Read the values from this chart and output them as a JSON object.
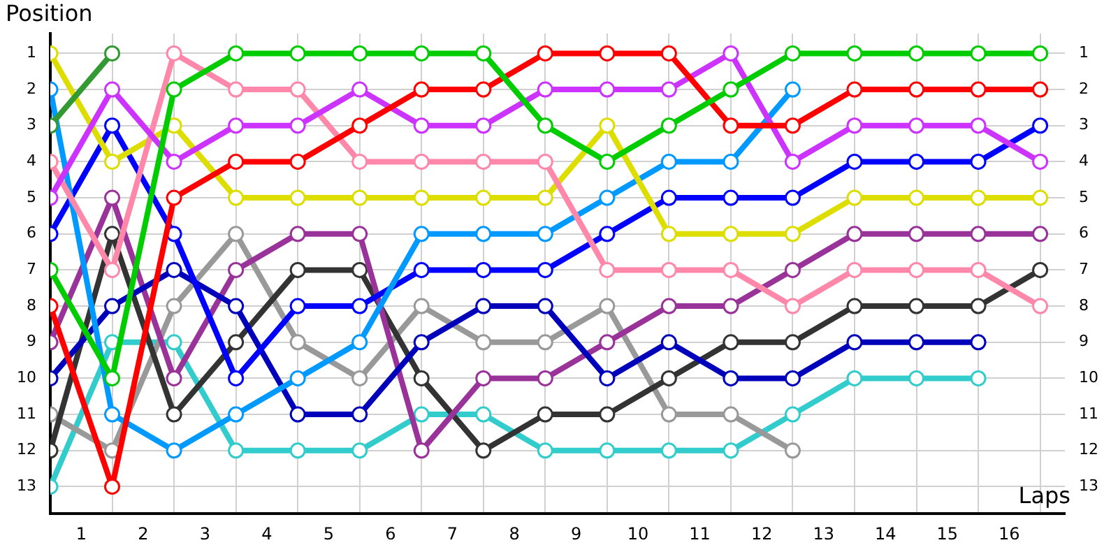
{
  "chart_data": {
    "type": "line",
    "xlabel": "Laps",
    "ylabel": "Position",
    "x": [
      0,
      1,
      2,
      3,
      4,
      5,
      6,
      7,
      8,
      9,
      10,
      11,
      12,
      13,
      14,
      15,
      16
    ],
    "xlim": [
      0,
      16.4
    ],
    "xticks": [
      {
        "value": 0,
        "label": null
      },
      {
        "value": 0.5,
        "label": "1"
      },
      {
        "value": 1,
        "label": null
      },
      {
        "value": 1.5,
        "label": "2"
      },
      {
        "value": 2,
        "label": null
      },
      {
        "value": 2.5,
        "label": "3"
      },
      {
        "value": 3,
        "label": null
      },
      {
        "value": 3.5,
        "label": "4"
      },
      {
        "value": 4,
        "label": null
      },
      {
        "value": 4.5,
        "label": "5"
      },
      {
        "value": 5,
        "label": null
      },
      {
        "value": 5.5,
        "label": "6"
      },
      {
        "value": 6,
        "label": null
      },
      {
        "value": 6.5,
        "label": "7"
      },
      {
        "value": 7,
        "label": null
      },
      {
        "value": 7.5,
        "label": "8"
      },
      {
        "value": 8,
        "label": null
      },
      {
        "value": 8.5,
        "label": "9"
      },
      {
        "value": 9,
        "label": null
      },
      {
        "value": 9.5,
        "label": "10"
      },
      {
        "value": 10,
        "label": null
      },
      {
        "value": 10.5,
        "label": "11"
      },
      {
        "value": 11,
        "label": null
      },
      {
        "value": 11.5,
        "label": "12"
      },
      {
        "value": 12,
        "label": null
      },
      {
        "value": 12.5,
        "label": "13"
      },
      {
        "value": 13,
        "label": null
      },
      {
        "value": 13.5,
        "label": "14"
      },
      {
        "value": 14,
        "label": null
      },
      {
        "value": 14.5,
        "label": "15"
      },
      {
        "value": 15,
        "label": null
      },
      {
        "value": 15.5,
        "label": "16"
      },
      {
        "value": 16,
        "label": null
      }
    ],
    "ylim": [
      13.75,
      0.45
    ],
    "yticks": [
      1,
      2,
      3,
      4,
      5,
      6,
      7,
      8,
      9,
      10,
      11,
      12,
      13
    ],
    "y2lim": [
      13.75,
      0.45
    ],
    "y2ticks": [
      1,
      2,
      3,
      4,
      5,
      6,
      7,
      8,
      9,
      10,
      11,
      12,
      13
    ],
    "grid": true,
    "legend": false,
    "marker": "circle",
    "line_style": "solid",
    "series": [
      {
        "color": "#339933",
        "values": [
          3,
          1,
          null,
          null,
          null,
          null,
          null,
          null,
          null,
          null,
          null,
          null,
          null,
          null,
          null,
          null,
          null
        ]
      },
      {
        "color": "#00cc00",
        "values": [
          7,
          10,
          2,
          1,
          1,
          1,
          1,
          1,
          3,
          4,
          3,
          2,
          1,
          1,
          1,
          1,
          1
        ]
      },
      {
        "color": "#ff0000",
        "values": [
          8,
          13,
          5,
          4,
          4,
          3,
          2,
          2,
          1,
          1,
          1,
          3,
          3,
          2,
          2,
          2,
          2
        ]
      },
      {
        "color": "#cc33ff",
        "values": [
          5,
          2,
          4,
          3,
          3,
          2,
          3,
          3,
          2,
          2,
          2,
          1,
          4,
          3,
          3,
          3,
          4
        ]
      },
      {
        "color": "#ff88aa",
        "values": [
          4,
          7,
          1,
          2,
          2,
          4,
          4,
          4,
          4,
          7,
          7,
          7,
          8,
          7,
          7,
          7,
          8
        ]
      },
      {
        "color": "#dddd00",
        "values": [
          1,
          4,
          3,
          5,
          5,
          5,
          5,
          5,
          5,
          3,
          6,
          6,
          6,
          5,
          5,
          5,
          5
        ]
      },
      {
        "color": "#0099ff",
        "values": [
          2,
          11,
          12,
          11,
          10,
          9,
          6,
          6,
          6,
          5,
          4,
          4,
          2,
          null,
          null,
          null,
          null
        ]
      },
      {
        "color": "#0000ff",
        "values": [
          6,
          3,
          6,
          10,
          8,
          8,
          7,
          7,
          7,
          6,
          5,
          5,
          5,
          4,
          4,
          4,
          3
        ]
      },
      {
        "color": "#0000bb",
        "values": [
          10,
          8,
          7,
          8,
          11,
          11,
          9,
          8,
          8,
          10,
          9,
          10,
          10,
          9,
          9,
          9,
          null
        ]
      },
      {
        "color": "#993399",
        "values": [
          9,
          5,
          10,
          7,
          6,
          6,
          12,
          10,
          10,
          9,
          8,
          8,
          7,
          6,
          6,
          6,
          6
        ]
      },
      {
        "color": "#333333",
        "values": [
          12,
          6,
          11,
          9,
          7,
          7,
          10,
          12,
          11,
          11,
          10,
          9,
          9,
          8,
          8,
          8,
          7
        ]
      },
      {
        "color": "#999999",
        "values": [
          11,
          12,
          8,
          6,
          9,
          10,
          8,
          9,
          9,
          8,
          11,
          11,
          12,
          null,
          null,
          null,
          null
        ]
      },
      {
        "color": "#33cccc",
        "values": [
          13,
          9,
          9,
          12,
          12,
          12,
          11,
          11,
          12,
          12,
          12,
          12,
          11,
          10,
          10,
          10,
          null
        ]
      }
    ]
  }
}
